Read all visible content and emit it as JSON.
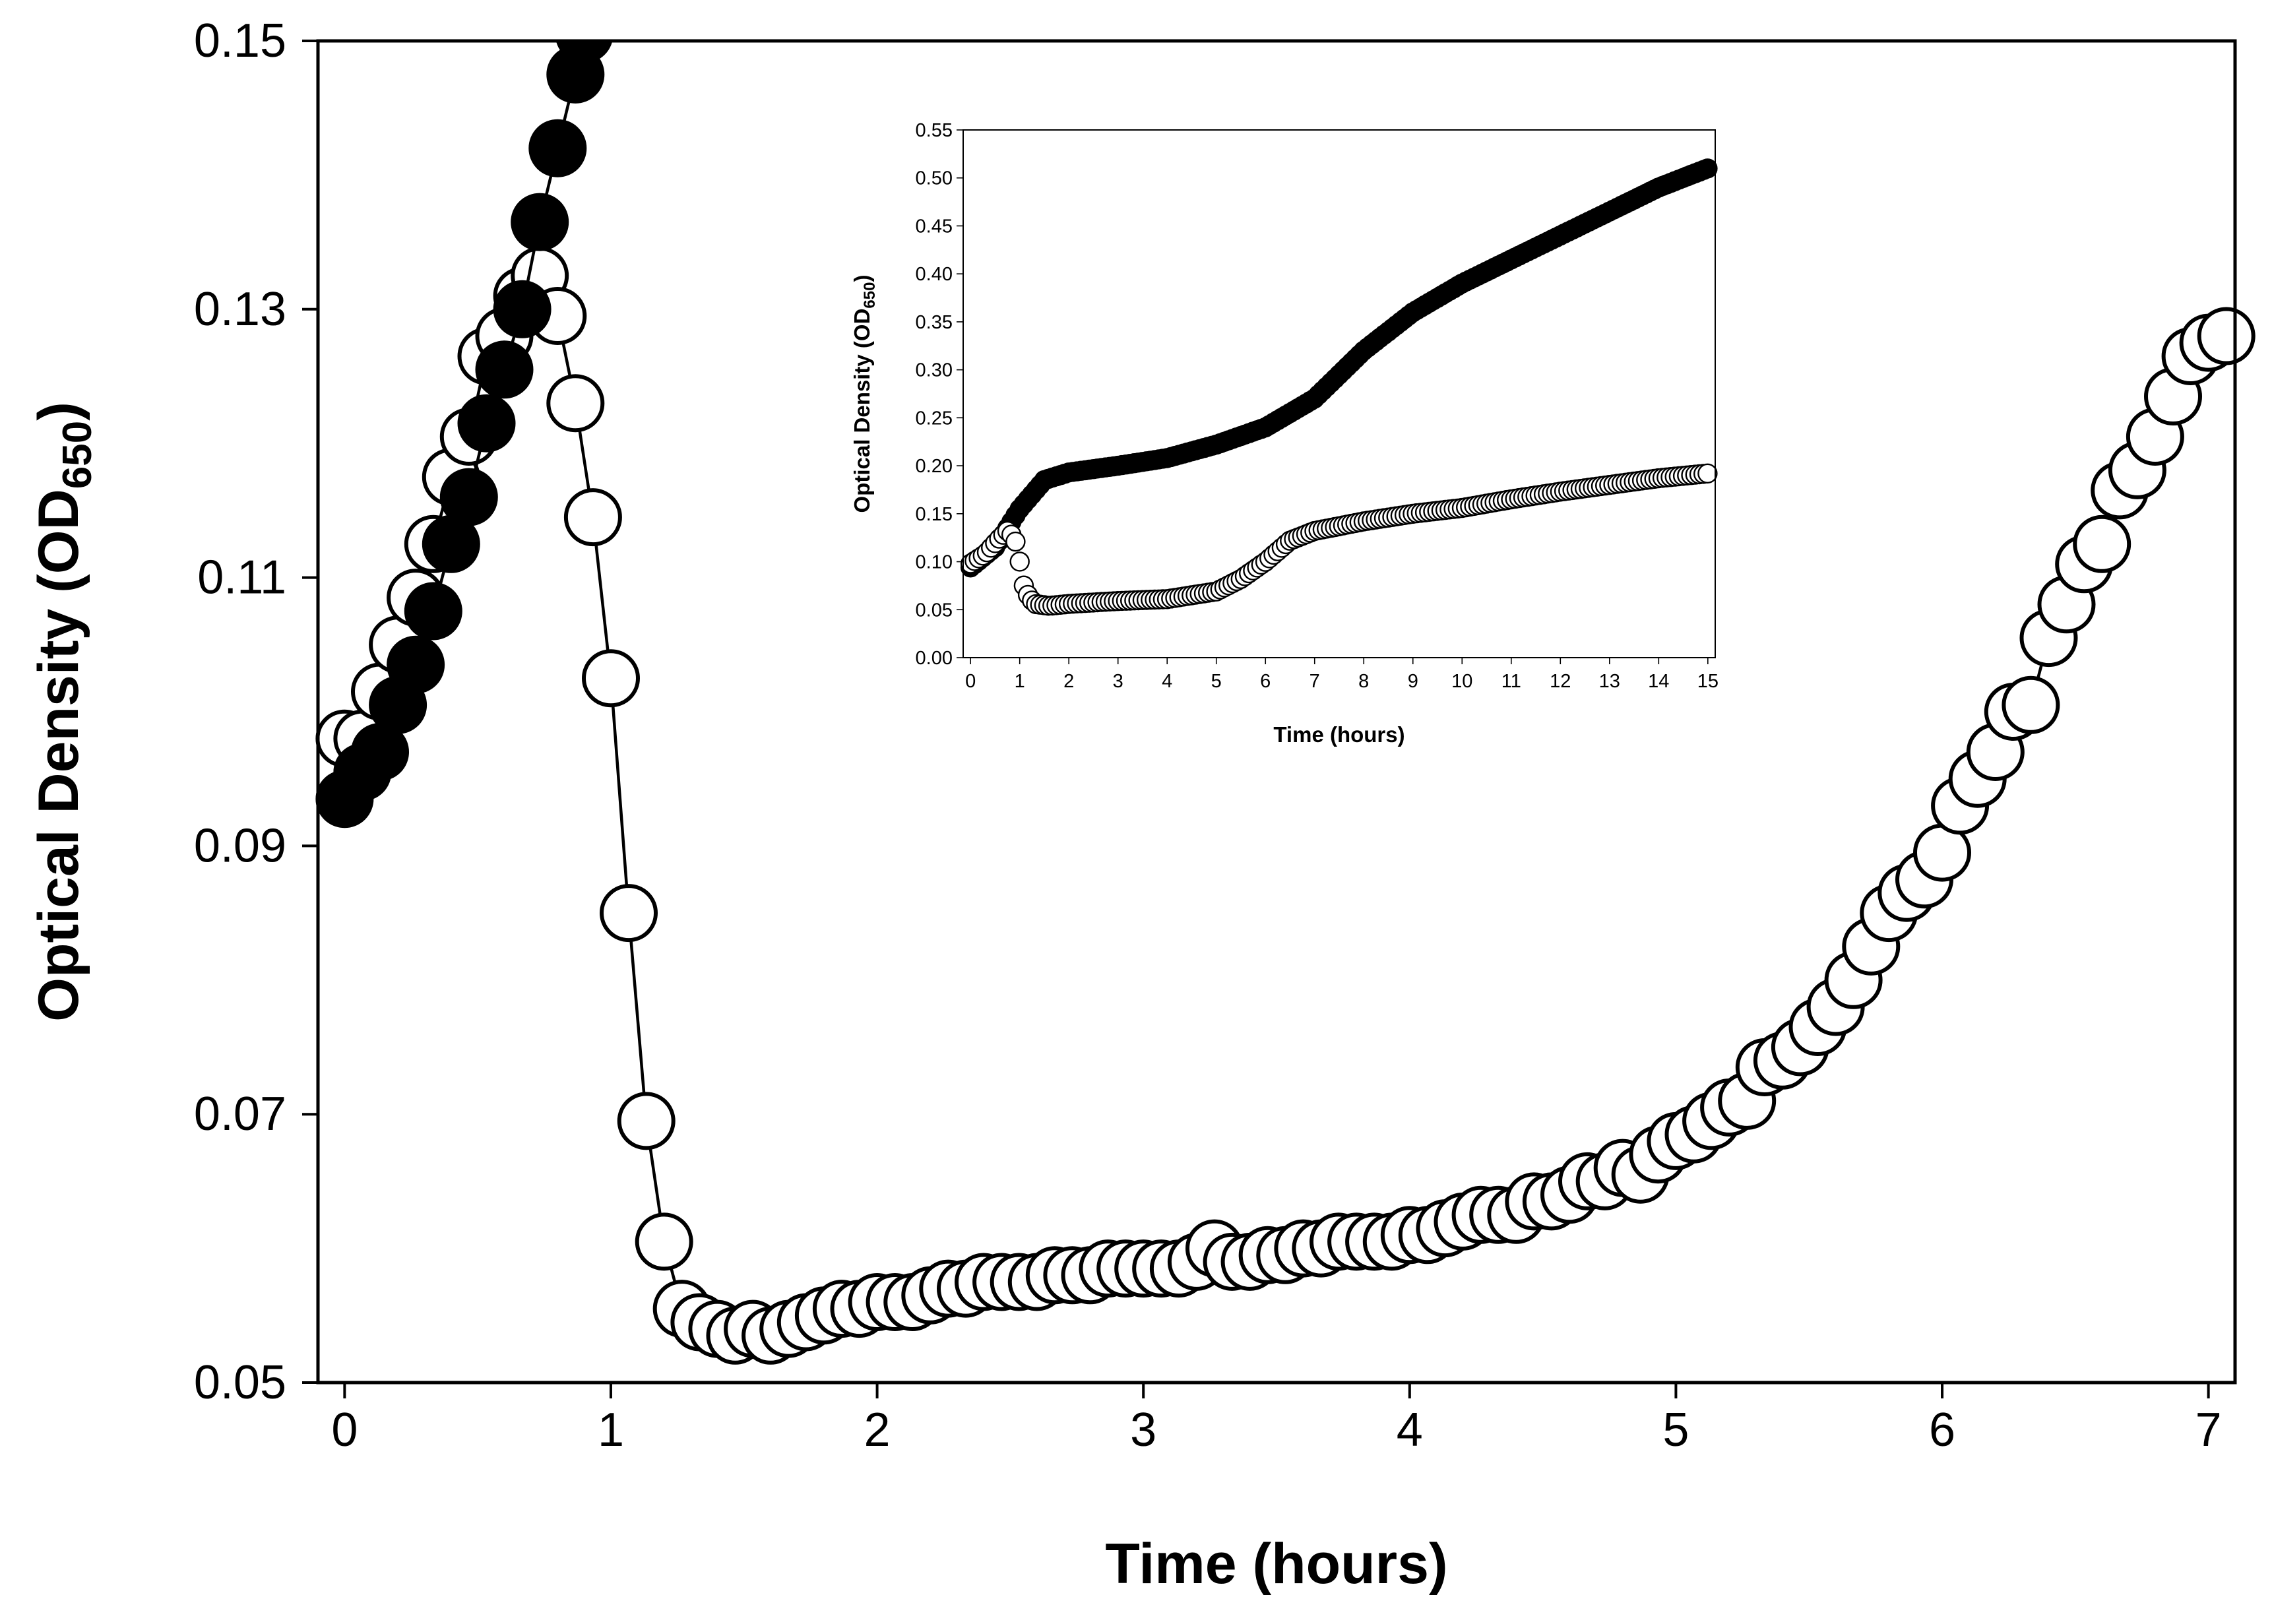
{
  "chart_data": [
    {
      "id": "main",
      "type": "scatter",
      "xlabel": "Time (hours)",
      "ylabel": "Optical Density (OD",
      "ylabel_subscript": "650",
      "ylabel_close": ")",
      "xlim": [
        -0.1,
        7.1
      ],
      "ylim": [
        0.05,
        0.15
      ],
      "xticks": [
        0,
        1,
        2,
        3,
        4,
        5,
        6,
        7
      ],
      "xtick_labels": [
        "0",
        "1",
        "2",
        "3",
        "4",
        "5",
        "6",
        "7"
      ],
      "yticks": [
        0.05,
        0.07,
        0.09,
        0.11,
        0.13,
        0.15
      ],
      "ytick_labels": [
        "0.05",
        "0.07",
        "0.09",
        "0.11",
        "0.13",
        "0.15"
      ],
      "grid": false,
      "series": [
        {
          "name": "filled",
          "marker": "filled-circle",
          "x": [
            0,
            0.067,
            0.133,
            0.2,
            0.267,
            0.333,
            0.4,
            0.467,
            0.533,
            0.6,
            0.667,
            0.733,
            0.8,
            0.867,
            0.9
          ],
          "y": [
            0.0935,
            0.0955,
            0.097,
            0.1005,
            0.1035,
            0.1075,
            0.1125,
            0.116,
            0.1215,
            0.1255,
            0.13,
            0.1365,
            0.142,
            0.1475,
            0.1505
          ]
        },
        {
          "name": "open",
          "marker": "open-circle",
          "x": [
            0,
            0.067,
            0.133,
            0.2,
            0.267,
            0.333,
            0.4,
            0.467,
            0.533,
            0.6,
            0.667,
            0.733,
            0.8,
            0.867,
            0.933,
            1.0,
            1.067,
            1.133,
            1.2,
            1.267,
            1.333,
            1.4,
            1.467,
            1.533,
            1.6,
            1.667,
            1.733,
            1.8,
            1.867,
            1.933,
            2.0,
            2.067,
            2.133,
            2.2,
            2.267,
            2.333,
            2.4,
            2.467,
            2.533,
            2.6,
            2.667,
            2.733,
            2.8,
            2.867,
            2.933,
            3.0,
            3.067,
            3.133,
            3.2,
            3.267,
            3.333,
            3.4,
            3.467,
            3.533,
            3.6,
            3.667,
            3.733,
            3.8,
            3.867,
            3.933,
            4.0,
            4.067,
            4.133,
            4.2,
            4.267,
            4.333,
            4.4,
            4.467,
            4.533,
            4.6,
            4.667,
            4.733,
            4.8,
            4.867,
            4.933,
            5.0,
            5.067,
            5.133,
            5.2,
            5.267,
            5.333,
            5.4,
            5.467,
            5.533,
            5.6,
            5.667,
            5.733,
            5.8,
            5.867,
            5.933,
            6.0,
            6.067,
            6.133,
            6.2,
            6.267,
            6.333,
            6.4,
            6.467,
            6.533,
            6.6,
            6.667,
            6.733,
            6.8,
            6.867,
            6.933,
            7.0,
            7.067
          ],
          "y": [
            0.098,
            0.098,
            0.1015,
            0.105,
            0.1085,
            0.1125,
            0.1175,
            0.1205,
            0.1265,
            0.128,
            0.131,
            0.1325,
            0.1295,
            0.123,
            0.1145,
            0.1025,
            0.085,
            0.0695,
            0.0605,
            0.0555,
            0.0545,
            0.054,
            0.0535,
            0.054,
            0.0535,
            0.054,
            0.0545,
            0.055,
            0.0555,
            0.0555,
            0.056,
            0.056,
            0.056,
            0.0565,
            0.057,
            0.057,
            0.0575,
            0.0575,
            0.0575,
            0.0575,
            0.058,
            0.058,
            0.058,
            0.0585,
            0.0585,
            0.0585,
            0.0585,
            0.0585,
            0.059,
            0.06,
            0.059,
            0.059,
            0.0595,
            0.0595,
            0.06,
            0.06,
            0.0605,
            0.0605,
            0.0605,
            0.0605,
            0.061,
            0.061,
            0.0615,
            0.062,
            0.0625,
            0.0625,
            0.0625,
            0.0635,
            0.0635,
            0.064,
            0.065,
            0.065,
            0.066,
            0.0655,
            0.067,
            0.068,
            0.0685,
            0.0695,
            0.0705,
            0.071,
            0.0735,
            0.074,
            0.075,
            0.0765,
            0.078,
            0.08,
            0.0825,
            0.085,
            0.0865,
            0.0875,
            0.0895,
            0.093,
            0.095,
            0.097,
            0.1,
            0.1005,
            0.1055,
            0.108,
            0.111,
            0.1125,
            0.1165,
            0.118,
            0.1205,
            0.1235,
            0.1265,
            0.1275,
            0.128
          ]
        }
      ]
    },
    {
      "id": "inset",
      "type": "scatter",
      "xlabel": "Time (hours)",
      "ylabel": "Optical Density (OD",
      "ylabel_subscript": "650",
      "ylabel_close": ")",
      "xlim": [
        -0.15,
        15.15
      ],
      "ylim": [
        0.0,
        0.55
      ],
      "xticks": [
        0,
        1,
        2,
        3,
        4,
        5,
        6,
        7,
        8,
        9,
        10,
        11,
        12,
        13,
        14,
        15
      ],
      "xtick_labels": [
        "0",
        "1",
        "2",
        "3",
        "4",
        "5",
        "6",
        "7",
        "8",
        "9",
        "10",
        "11",
        "12",
        "13",
        "14",
        "15"
      ],
      "yticks": [
        0.0,
        0.05,
        0.1,
        0.15,
        0.2,
        0.25,
        0.3,
        0.35,
        0.4,
        0.45,
        0.5,
        0.55
      ],
      "ytick_labels": [
        "0.00",
        "0.05",
        "0.10",
        "0.15",
        "0.20",
        "0.25",
        "0.30",
        "0.35",
        "0.40",
        "0.45",
        "0.50",
        "0.55"
      ],
      "grid": false,
      "series": [
        {
          "name": "filled",
          "marker": "filled-circle",
          "key_points": [
            [
              0,
              0.094
            ],
            [
              0.5,
              0.115
            ],
            [
              1.0,
              0.155
            ],
            [
              1.5,
              0.185
            ],
            [
              2.0,
              0.193
            ],
            [
              3.0,
              0.2
            ],
            [
              4.0,
              0.208
            ],
            [
              5.0,
              0.222
            ],
            [
              6.0,
              0.24
            ],
            [
              7.0,
              0.27
            ],
            [
              8.0,
              0.32
            ],
            [
              9.0,
              0.36
            ],
            [
              10.0,
              0.39
            ],
            [
              11.0,
              0.415
            ],
            [
              12.0,
              0.44
            ],
            [
              13.0,
              0.465
            ],
            [
              14.0,
              0.49
            ],
            [
              15.0,
              0.51
            ]
          ]
        },
        {
          "name": "open",
          "marker": "open-circle",
          "key_points": [
            [
              0,
              0.098
            ],
            [
              0.3,
              0.108
            ],
            [
              0.6,
              0.125
            ],
            [
              0.75,
              0.132
            ],
            [
              0.9,
              0.125
            ],
            [
              1.0,
              0.1
            ],
            [
              1.1,
              0.07
            ],
            [
              1.3,
              0.056
            ],
            [
              1.6,
              0.054
            ],
            [
              2.0,
              0.056
            ],
            [
              3.0,
              0.059
            ],
            [
              4.0,
              0.061
            ],
            [
              5.0,
              0.069
            ],
            [
              5.5,
              0.082
            ],
            [
              6.0,
              0.1
            ],
            [
              6.5,
              0.122
            ],
            [
              7.0,
              0.132
            ],
            [
              8.0,
              0.142
            ],
            [
              9.0,
              0.15
            ],
            [
              10.0,
              0.156
            ],
            [
              11.0,
              0.165
            ],
            [
              12.0,
              0.173
            ],
            [
              13.0,
              0.18
            ],
            [
              14.0,
              0.187
            ],
            [
              15.0,
              0.192
            ]
          ]
        }
      ]
    }
  ]
}
